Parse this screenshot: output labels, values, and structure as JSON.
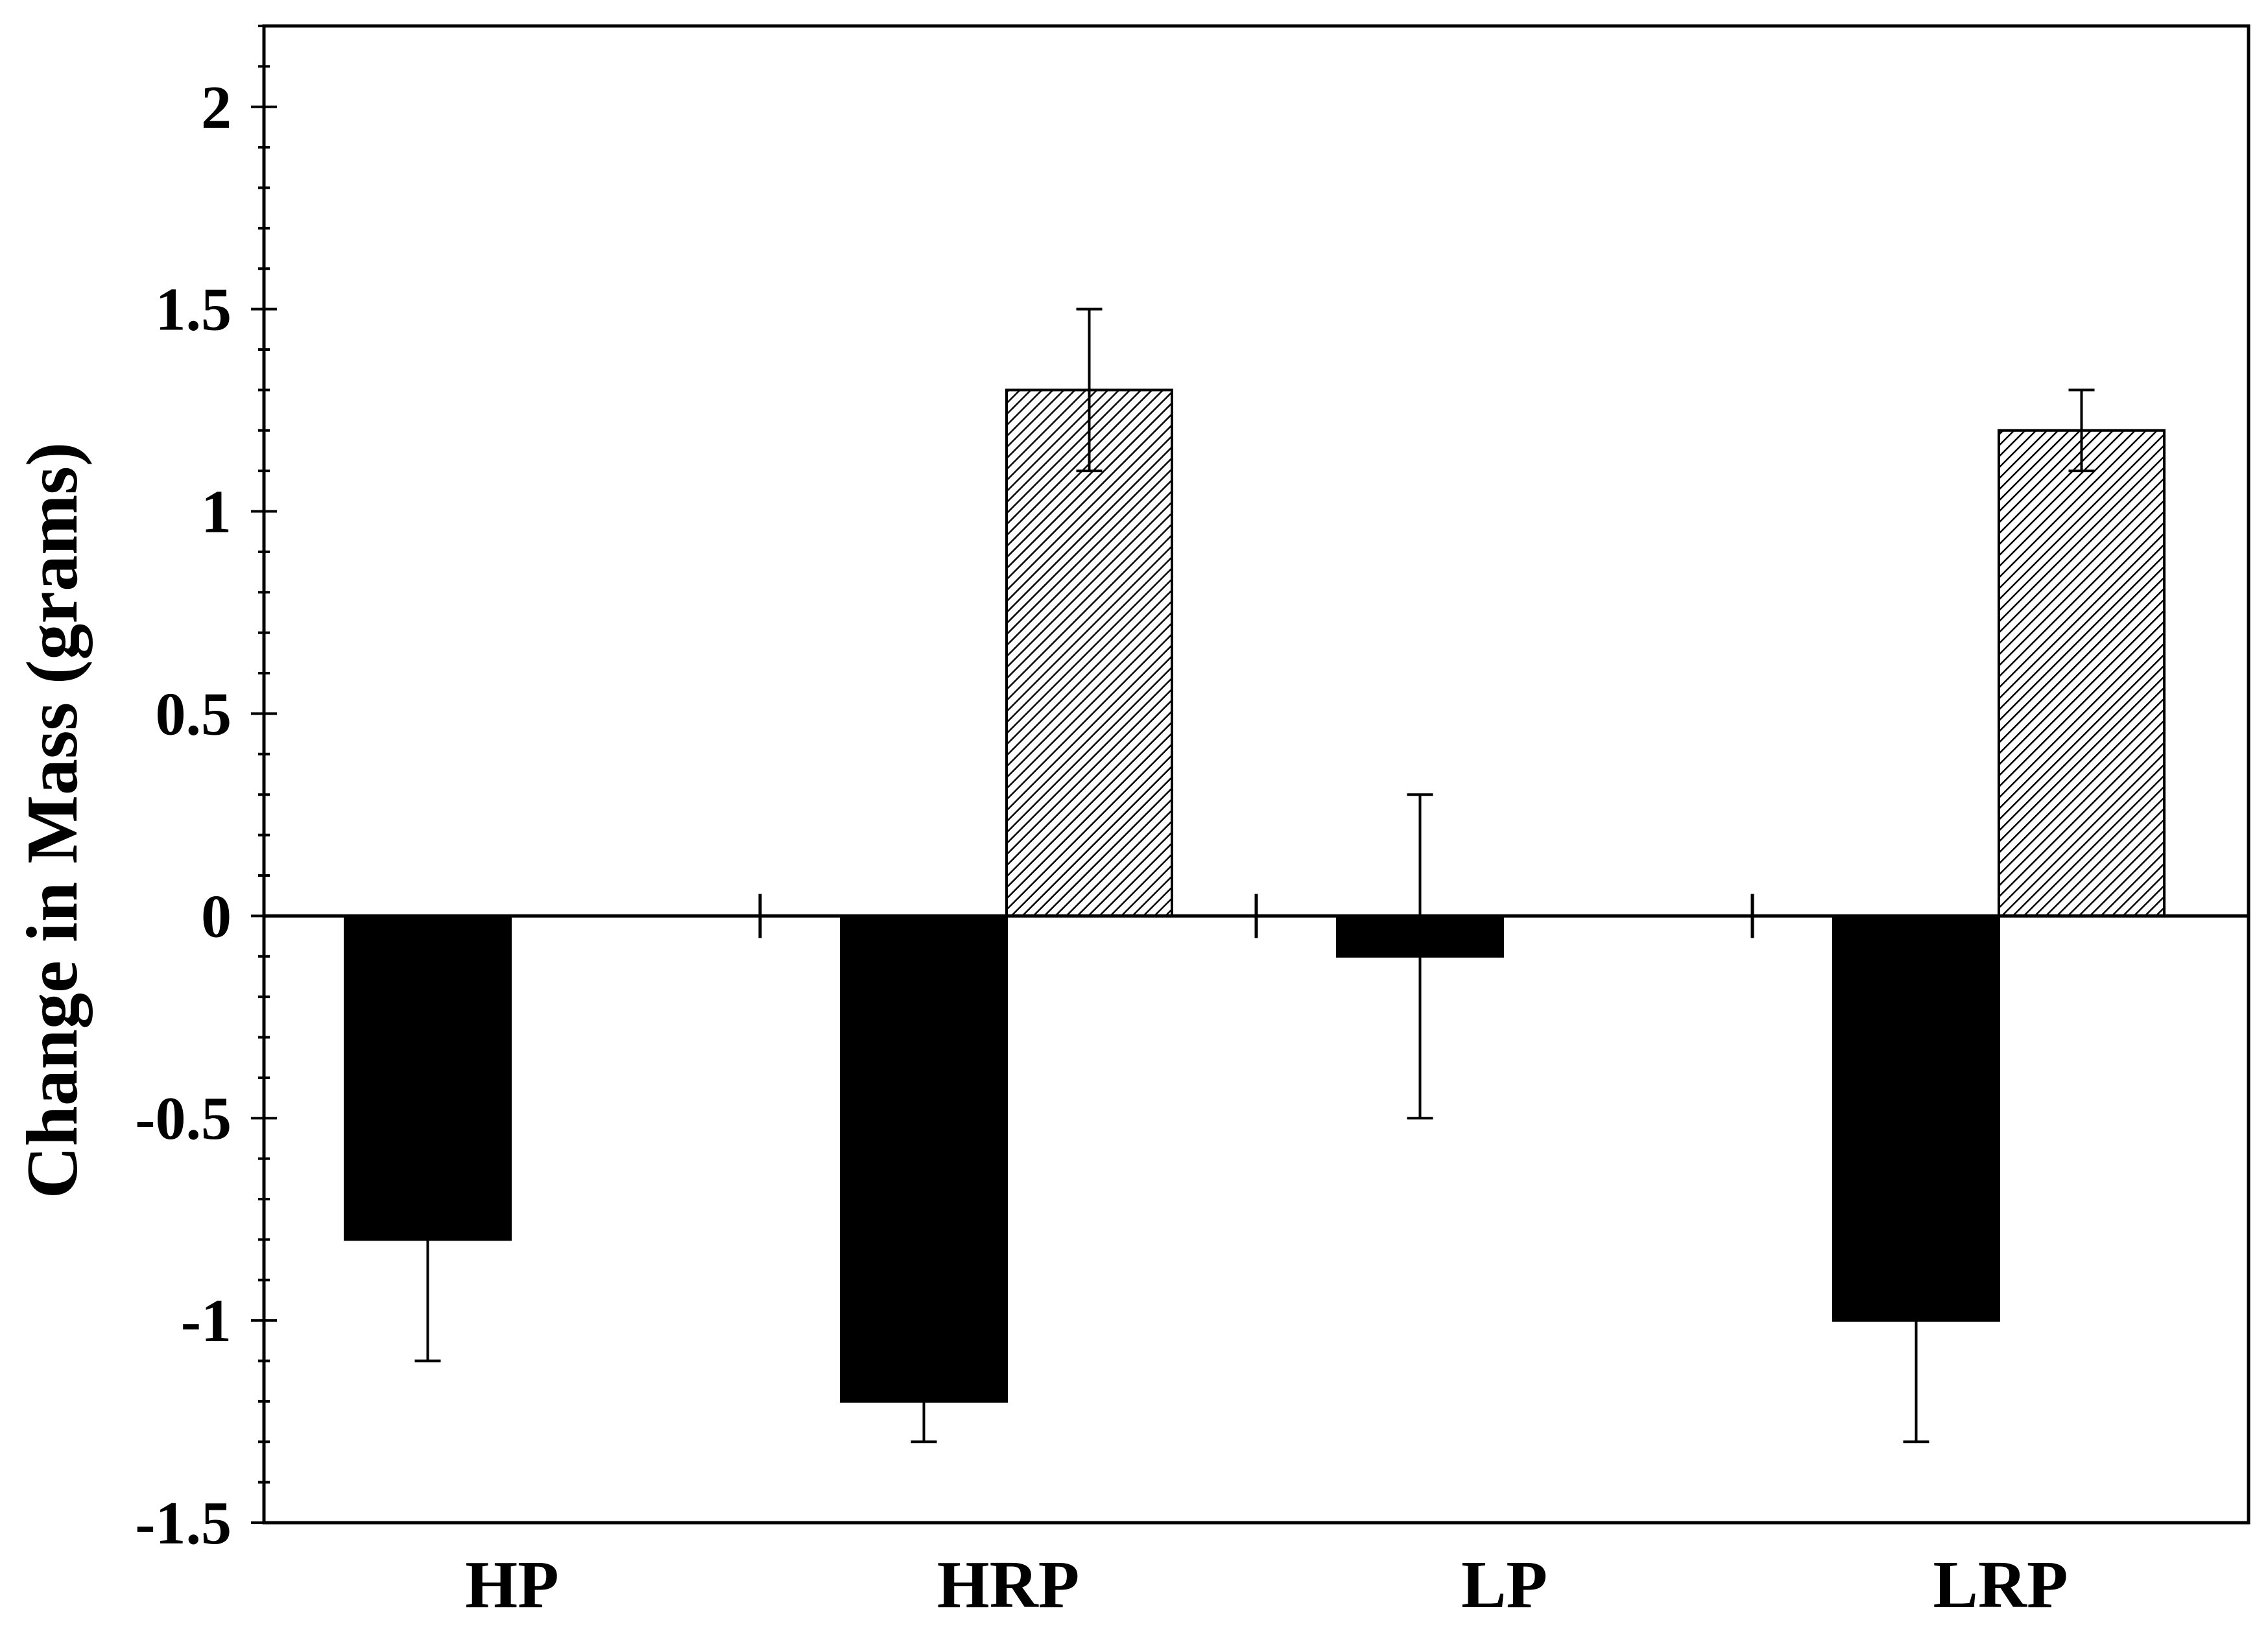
{
  "chart_data": {
    "type": "bar",
    "title": "",
    "xlabel": "",
    "ylabel": "Change in Mass (grams)",
    "categories": [
      "HP",
      "HRP",
      "LP",
      "LRP"
    ],
    "series": [
      {
        "color": "#000000",
        "pattern": "solid",
        "values": [
          -0.8,
          -1.2,
          -0.1,
          -1.0
        ],
        "errors": [
          0.3,
          0.1,
          0.4,
          0.3
        ]
      },
      {
        "color": "#ffffff",
        "pattern": "diagonal-hatch",
        "values": [
          null,
          1.3,
          null,
          1.2
        ],
        "errors": [
          null,
          0.2,
          null,
          0.1
        ]
      }
    ],
    "ylim": [
      -1.5,
      2.2
    ],
    "yticks": [
      -1.5,
      -1,
      -0.5,
      0,
      0.5,
      1,
      1.5,
      2
    ],
    "ytick_labels": [
      "-1.5",
      "-1",
      "-0.5",
      "0",
      "0.5",
      "1",
      "1.5",
      "2"
    ],
    "grid": false,
    "legend": "none"
  }
}
